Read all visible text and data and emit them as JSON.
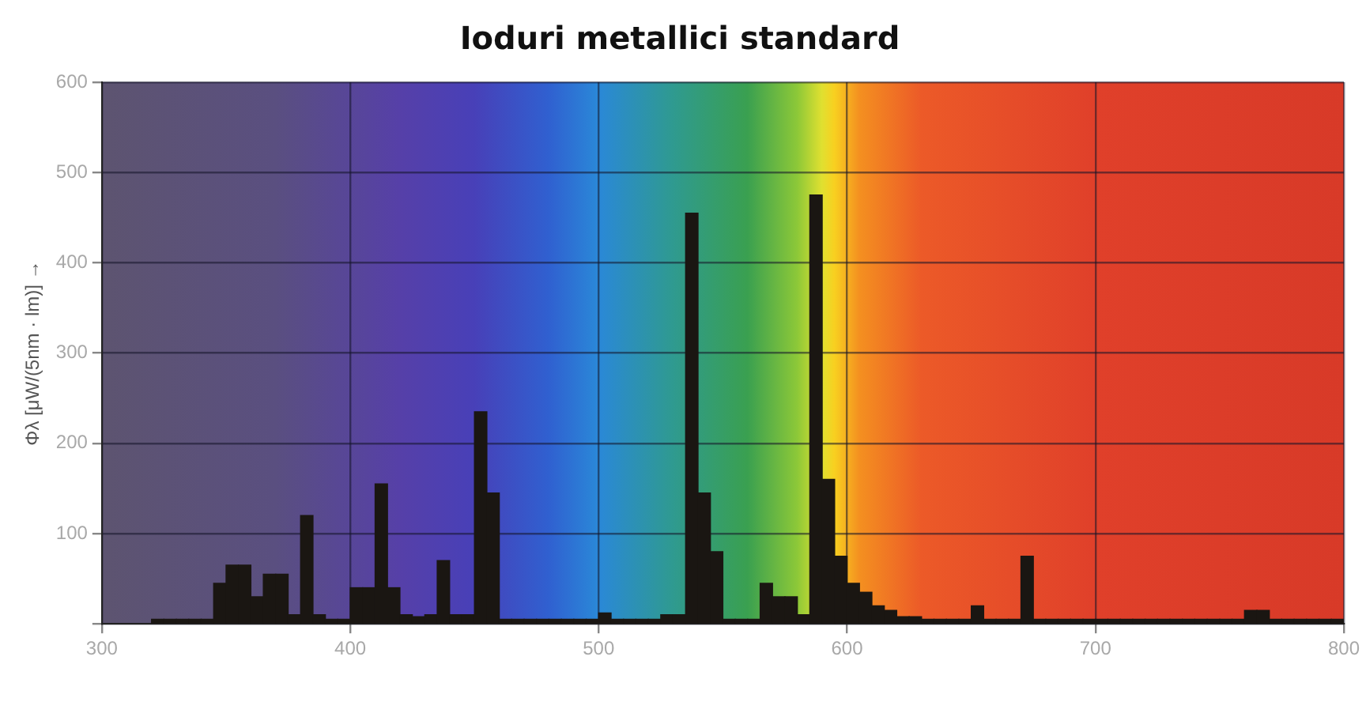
{
  "chart_data": {
    "type": "histogram",
    "title": "Ioduri metallici standard",
    "ylabel": "Φλ [μW/(5nm · lm)] →",
    "bins": [
      320,
      325,
      330,
      335,
      340,
      345,
      350,
      355,
      360,
      365,
      370,
      375,
      380,
      385,
      390,
      395,
      400,
      405,
      410,
      415,
      420,
      425,
      430,
      435,
      440,
      445,
      450,
      455,
      460,
      465,
      470,
      475,
      480,
      485,
      490,
      495,
      500,
      505,
      510,
      515,
      520,
      525,
      530,
      535,
      540,
      545,
      550,
      555,
      560,
      565,
      570,
      575,
      580,
      585,
      590,
      595,
      600,
      605,
      610,
      615,
      620,
      625,
      630,
      635,
      640,
      645,
      650,
      655,
      660,
      665,
      670,
      675,
      680,
      685,
      690,
      695,
      700,
      705,
      710,
      715,
      720,
      725,
      730,
      735,
      740,
      745,
      750,
      755,
      760,
      765,
      770,
      775,
      780,
      785,
      790,
      795,
      800
    ],
    "values": [
      5,
      5,
      5,
      5,
      5,
      45,
      65,
      65,
      30,
      55,
      55,
      10,
      120,
      10,
      5,
      5,
      40,
      40,
      155,
      40,
      10,
      8,
      10,
      70,
      10,
      10,
      235,
      145,
      5,
      5,
      5,
      5,
      5,
      5,
      5,
      5,
      12,
      5,
      5,
      5,
      5,
      10,
      10,
      455,
      145,
      80,
      5,
      5,
      5,
      45,
      30,
      30,
      10,
      475,
      160,
      75,
      45,
      35,
      20,
      15,
      8,
      8,
      5,
      5,
      5,
      5,
      20,
      5,
      5,
      5,
      75,
      5,
      5,
      5,
      5,
      5,
      5,
      5,
      5,
      5,
      5,
      5,
      5,
      5,
      5,
      5,
      5,
      5,
      15,
      15,
      5,
      5,
      5,
      5,
      5,
      5
    ],
    "color": "#1a1612",
    "xlim": [
      300,
      800
    ],
    "xticks": [
      300,
      400,
      500,
      600,
      700,
      800
    ],
    "ylim": [
      0,
      600
    ],
    "yticks": [
      {
        "value": 0,
        "label": null
      },
      100,
      200,
      300,
      400,
      500,
      600
    ],
    "grid": true
  }
}
